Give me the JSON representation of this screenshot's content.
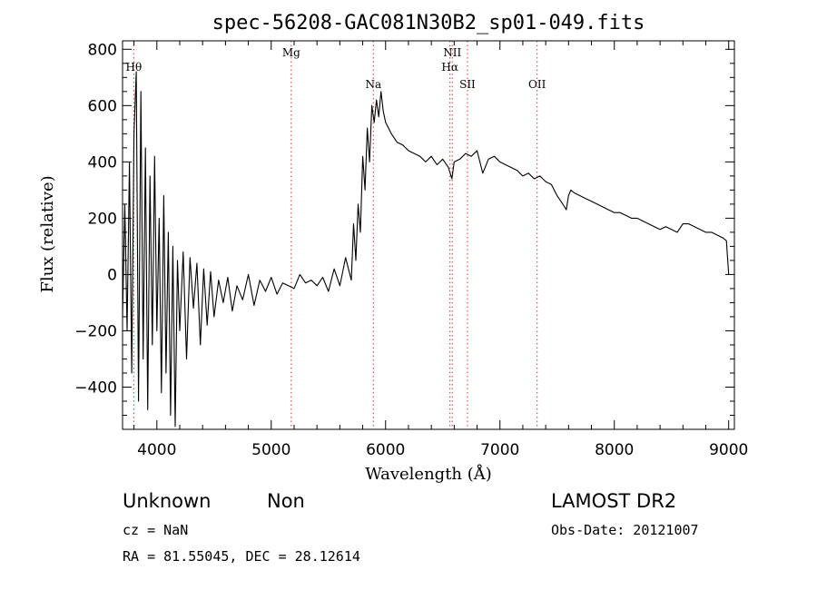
{
  "chart_data": {
    "type": "line",
    "title": "spec-56208-GAC081N30B2_sp01-049.fits",
    "xlabel": "Wavelength (Å)",
    "ylabel": "Flux (relative)",
    "xlim": [
      3700,
      9050
    ],
    "ylim": [
      -550,
      830
    ],
    "xticks": [
      4000,
      5000,
      6000,
      7000,
      8000,
      9000
    ],
    "yticks": [
      -400,
      -200,
      0,
      200,
      400,
      600,
      800
    ],
    "grid": false,
    "series": [
      {
        "x": [
          3700,
          3720,
          3740,
          3760,
          3780,
          3800,
          3820,
          3840,
          3860,
          3880,
          3900,
          3920,
          3940,
          3960,
          3980,
          4000,
          4020,
          4040,
          4060,
          4080,
          4100,
          4120,
          4140,
          4160,
          4180,
          4200,
          4230,
          4260,
          4290,
          4320,
          4350,
          4380,
          4410,
          4440,
          4470,
          4500,
          4540,
          4580,
          4620,
          4660,
          4700,
          4750,
          4800,
          4850,
          4900,
          4950,
          5000,
          5050,
          5100,
          5150,
          5200,
          5250,
          5300,
          5350,
          5400,
          5450,
          5500,
          5550,
          5600,
          5650,
          5700,
          5720,
          5740,
          5760,
          5780,
          5800,
          5820,
          5840,
          5860,
          5880,
          5900,
          5920,
          5940,
          5960,
          5980,
          6000,
          6050,
          6100,
          6150,
          6200,
          6250,
          6300,
          6350,
          6400,
          6450,
          6500,
          6550,
          6580,
          6600,
          6650,
          6700,
          6750,
          6800,
          6850,
          6900,
          6950,
          7000,
          7050,
          7100,
          7150,
          7200,
          7250,
          7300,
          7350,
          7400,
          7450,
          7500,
          7550,
          7580,
          7600,
          7620,
          7650,
          7700,
          7750,
          7800,
          7850,
          7900,
          7950,
          8000,
          8050,
          8100,
          8150,
          8200,
          8250,
          8300,
          8350,
          8400,
          8450,
          8500,
          8550,
          8600,
          8650,
          8700,
          8750,
          8800,
          8850,
          8900,
          8950,
          8980,
          9000
        ],
        "y": [
          -150,
          250,
          -200,
          400,
          -350,
          500,
          720,
          -450,
          650,
          -300,
          450,
          -480,
          350,
          -250,
          420,
          -200,
          200,
          -420,
          280,
          -350,
          150,
          -500,
          100,
          -540,
          50,
          -200,
          80,
          -300,
          60,
          -120,
          40,
          -250,
          20,
          -180,
          10,
          -150,
          -20,
          -100,
          -10,
          -130,
          -40,
          -90,
          0,
          -110,
          -20,
          -60,
          -10,
          -70,
          -30,
          -40,
          -50,
          0,
          -30,
          -20,
          -40,
          -10,
          -60,
          20,
          -40,
          60,
          -20,
          180,
          50,
          250,
          150,
          420,
          300,
          520,
          400,
          600,
          540,
          620,
          560,
          650,
          580,
          540,
          500,
          470,
          460,
          440,
          430,
          420,
          400,
          420,
          390,
          410,
          380,
          340,
          400,
          410,
          430,
          420,
          440,
          360,
          410,
          420,
          400,
          390,
          380,
          370,
          350,
          360,
          340,
          350,
          330,
          320,
          280,
          250,
          230,
          280,
          300,
          290,
          280,
          270,
          260,
          250,
          240,
          230,
          220,
          220,
          210,
          200,
          200,
          190,
          180,
          170,
          160,
          170,
          160,
          150,
          180,
          180,
          170,
          160,
          150,
          150,
          140,
          130,
          120,
          0
        ]
      }
    ],
    "line_markers": [
      {
        "label": "Hθ",
        "x": 3798,
        "row": 1
      },
      {
        "label": "Mg",
        "x": 5175,
        "row": 0
      },
      {
        "label": "Na",
        "x": 5893,
        "row": 2
      },
      {
        "label": "NII",
        "x": 6583,
        "row": 0
      },
      {
        "label": "Hα",
        "x": 6563,
        "row": 1
      },
      {
        "label": "SII",
        "x": 6716,
        "row": 2
      },
      {
        "label": "OII",
        "x": 7325,
        "row": 2
      }
    ]
  },
  "footer": {
    "object_type": "Unknown",
    "subclass": "Non",
    "survey": "LAMOST DR2",
    "redshift": "cz = NaN",
    "obs_date": "Obs-Date: 20121007",
    "coords": "RA =  81.55045, DEC =  28.12614"
  }
}
